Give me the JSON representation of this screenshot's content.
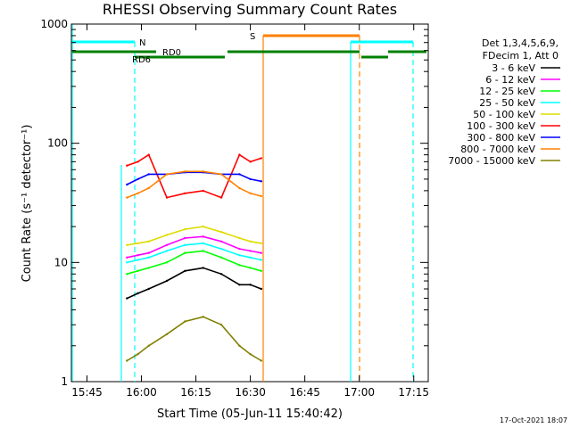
{
  "chart_data": {
    "type": "line",
    "title": "RHESSI Observing Summary Count Rates",
    "xlabel": "Start Time (05-Jun-11 15:40:42)",
    "ylabel": "Count Rate (s⁻¹ detector⁻¹)",
    "yscale": "log",
    "ylim": [
      1,
      1000
    ],
    "xlim_minutes_label": [
      "15:40:42",
      "17:19:00"
    ],
    "x_ticks": [
      "15:45",
      "16:00",
      "16:15",
      "16:30",
      "16:45",
      "17:00",
      "17:15"
    ],
    "y_ticks": [
      "1",
      "10",
      "100",
      "1000"
    ],
    "legend_header": [
      "Det 1,3,4,5,6,9,",
      "FDecim 1, Att 0"
    ],
    "series": [
      {
        "name": "3 - 6 keV",
        "color": "#000000",
        "segments": [
          {
            "t": [
              "15:56",
              "15:59",
              "16:02",
              "16:07",
              "16:12",
              "16:17",
              "16:22",
              "16:27",
              "16:30",
              "16:33"
            ],
            "y": [
              5,
              5.5,
              6,
              7,
              8.5,
              9,
              8,
              6.5,
              6.5,
              6
            ]
          }
        ]
      },
      {
        "name": "6 - 12 keV",
        "color": "#ff00ff",
        "segments": [
          {
            "t": [
              "15:56",
              "15:59",
              "16:02",
              "16:07",
              "16:12",
              "16:17",
              "16:22",
              "16:27",
              "16:30",
              "16:33"
            ],
            "y": [
              11,
              11.5,
              12,
              14,
              16,
              16.5,
              15,
              13,
              12.5,
              12
            ]
          }
        ]
      },
      {
        "name": "12 - 25 keV",
        "color": "#00ff00",
        "segments": [
          {
            "t": [
              "15:56",
              "15:59",
              "16:02",
              "16:07",
              "16:12",
              "16:17",
              "16:22",
              "16:27",
              "16:30",
              "16:33"
            ],
            "y": [
              8,
              8.5,
              9,
              10,
              12,
              12.5,
              11,
              9.5,
              9,
              8.5
            ]
          }
        ]
      },
      {
        "name": "25 - 50 keV",
        "color": "#00ffff",
        "segments": [
          {
            "t": [
              "15:56",
              "15:59",
              "16:02",
              "16:07",
              "16:12",
              "16:17",
              "16:22",
              "16:27",
              "16:30",
              "16:33"
            ],
            "y": [
              10,
              10.5,
              11,
              12.5,
              14,
              14.5,
              13,
              11.5,
              11,
              10.5
            ]
          }
        ]
      },
      {
        "name": "50 - 100 keV",
        "color": "#dddd00",
        "segments": [
          {
            "t": [
              "15:56",
              "15:59",
              "16:02",
              "16:07",
              "16:12",
              "16:17",
              "16:22",
              "16:27",
              "16:30",
              "16:33"
            ],
            "y": [
              14,
              14.5,
              15,
              17,
              19,
              20,
              18,
              16,
              15,
              14.5
            ]
          }
        ]
      },
      {
        "name": "100 - 300 keV",
        "color": "#ff0000",
        "segments": [
          {
            "t": [
              "15:56",
              "15:59",
              "16:02",
              "16:07",
              "16:12",
              "16:17",
              "16:22",
              "16:27",
              "16:30",
              "16:33"
            ],
            "y": [
              65,
              70,
              80,
              35,
              38,
              40,
              35,
              80,
              70,
              75
            ]
          }
        ]
      },
      {
        "name": "300 - 800 keV",
        "color": "#0000ff",
        "segments": [
          {
            "t": [
              "15:56",
              "15:59",
              "16:02",
              "16:07",
              "16:12",
              "16:17",
              "16:22",
              "16:27",
              "16:30",
              "16:33"
            ],
            "y": [
              45,
              50,
              55,
              55,
              57,
              57,
              55,
              55,
              50,
              48
            ]
          }
        ]
      },
      {
        "name": "800 - 7000 keV",
        "color": "#ff8000",
        "segments": [
          {
            "t": [
              "15:56",
              "15:59",
              "16:02",
              "16:07",
              "16:12",
              "16:17",
              "16:22",
              "16:27",
              "16:30",
              "16:33"
            ],
            "y": [
              35,
              38,
              42,
              55,
              58,
              58,
              55,
              42,
              38,
              36
            ]
          }
        ]
      },
      {
        "name": "7000 - 15000 keV",
        "color": "#808000",
        "segments": [
          {
            "t": [
              "15:56",
              "15:59",
              "16:02",
              "16:07",
              "16:12",
              "16:17",
              "16:22",
              "16:27",
              "16:30",
              "16:33"
            ],
            "y": [
              1.5,
              1.7,
              2,
              2.5,
              3.2,
              3.5,
              3,
              2,
              1.7,
              1.5
            ]
          }
        ]
      }
    ],
    "annotations": [
      {
        "label": "N",
        "color": "#00ffff"
      },
      {
        "label": "RD6",
        "color": "#008000"
      },
      {
        "label": "RD0",
        "color": "#008000"
      },
      {
        "label": "S",
        "color": "#ff8000"
      }
    ],
    "grid": false,
    "legend_placement": "right"
  },
  "footer": {
    "timestamp": "17-Oct-2021 18:07"
  }
}
